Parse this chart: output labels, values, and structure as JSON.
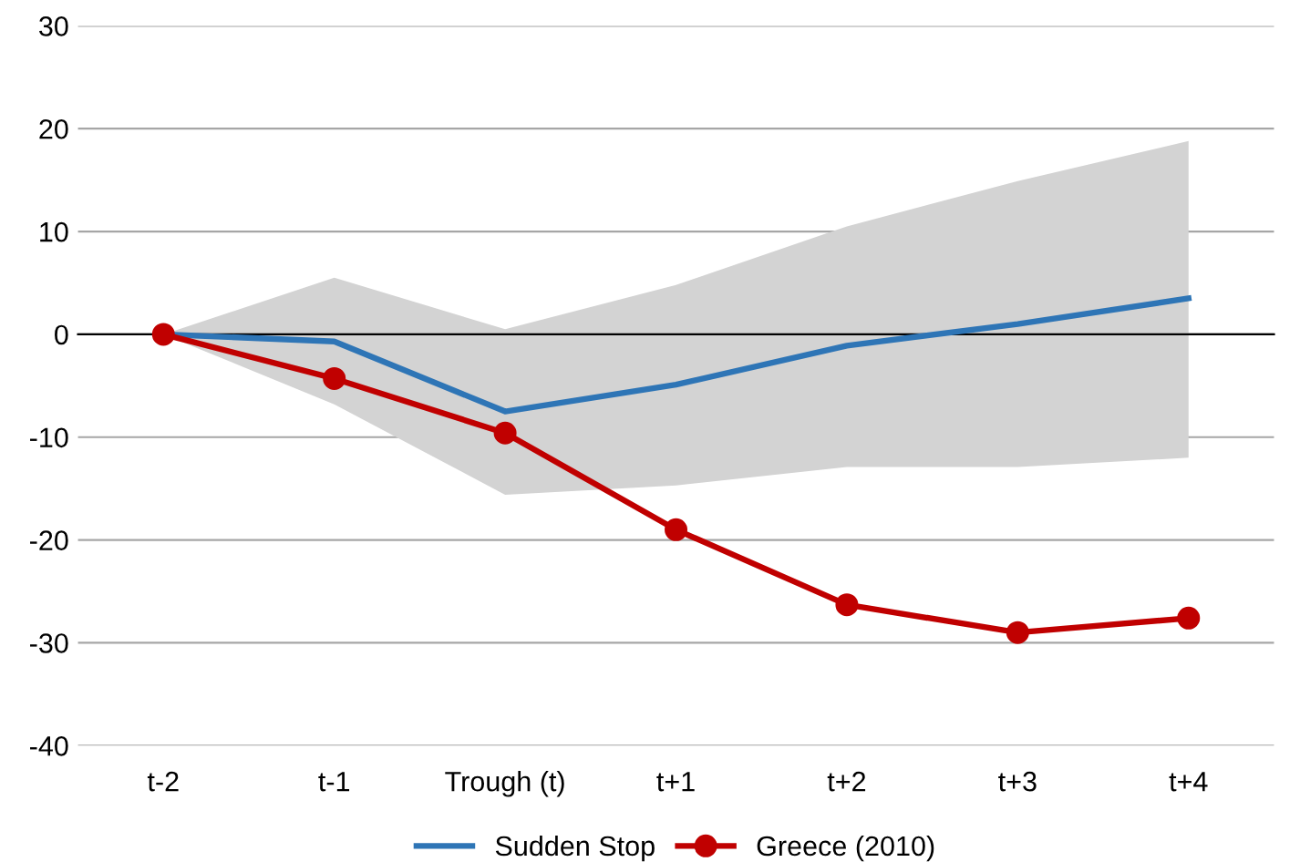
{
  "chart_data": {
    "type": "line",
    "categories": [
      "t-2",
      "t-1",
      "Trough (t)",
      "t+1",
      "t+2",
      "t+3",
      "t+4"
    ],
    "series": [
      {
        "name": "Sudden Stop",
        "color": "#2e75b6",
        "values": [
          0,
          -0.7,
          -7.5,
          -4.9,
          -1.1,
          1.0,
          3.5
        ],
        "lower": [
          0,
          -6.8,
          -15.6,
          -14.7,
          -12.9,
          -12.9,
          -12.0
        ],
        "upper": [
          0,
          5.5,
          0.5,
          4.8,
          10.5,
          14.9,
          18.8
        ],
        "marker": "none"
      },
      {
        "name": "Greece (2010)",
        "color": "#c00000",
        "values": [
          0,
          -4.3,
          -9.6,
          -19.0,
          -26.3,
          -29.0,
          -27.6
        ],
        "marker": "circle"
      }
    ],
    "ylim": [
      -40,
      30
    ],
    "yticks": [
      -40,
      -30,
      -20,
      -10,
      0,
      10,
      20,
      30
    ],
    "grid": "y",
    "legend": "bottom",
    "line_style": "solid"
  }
}
